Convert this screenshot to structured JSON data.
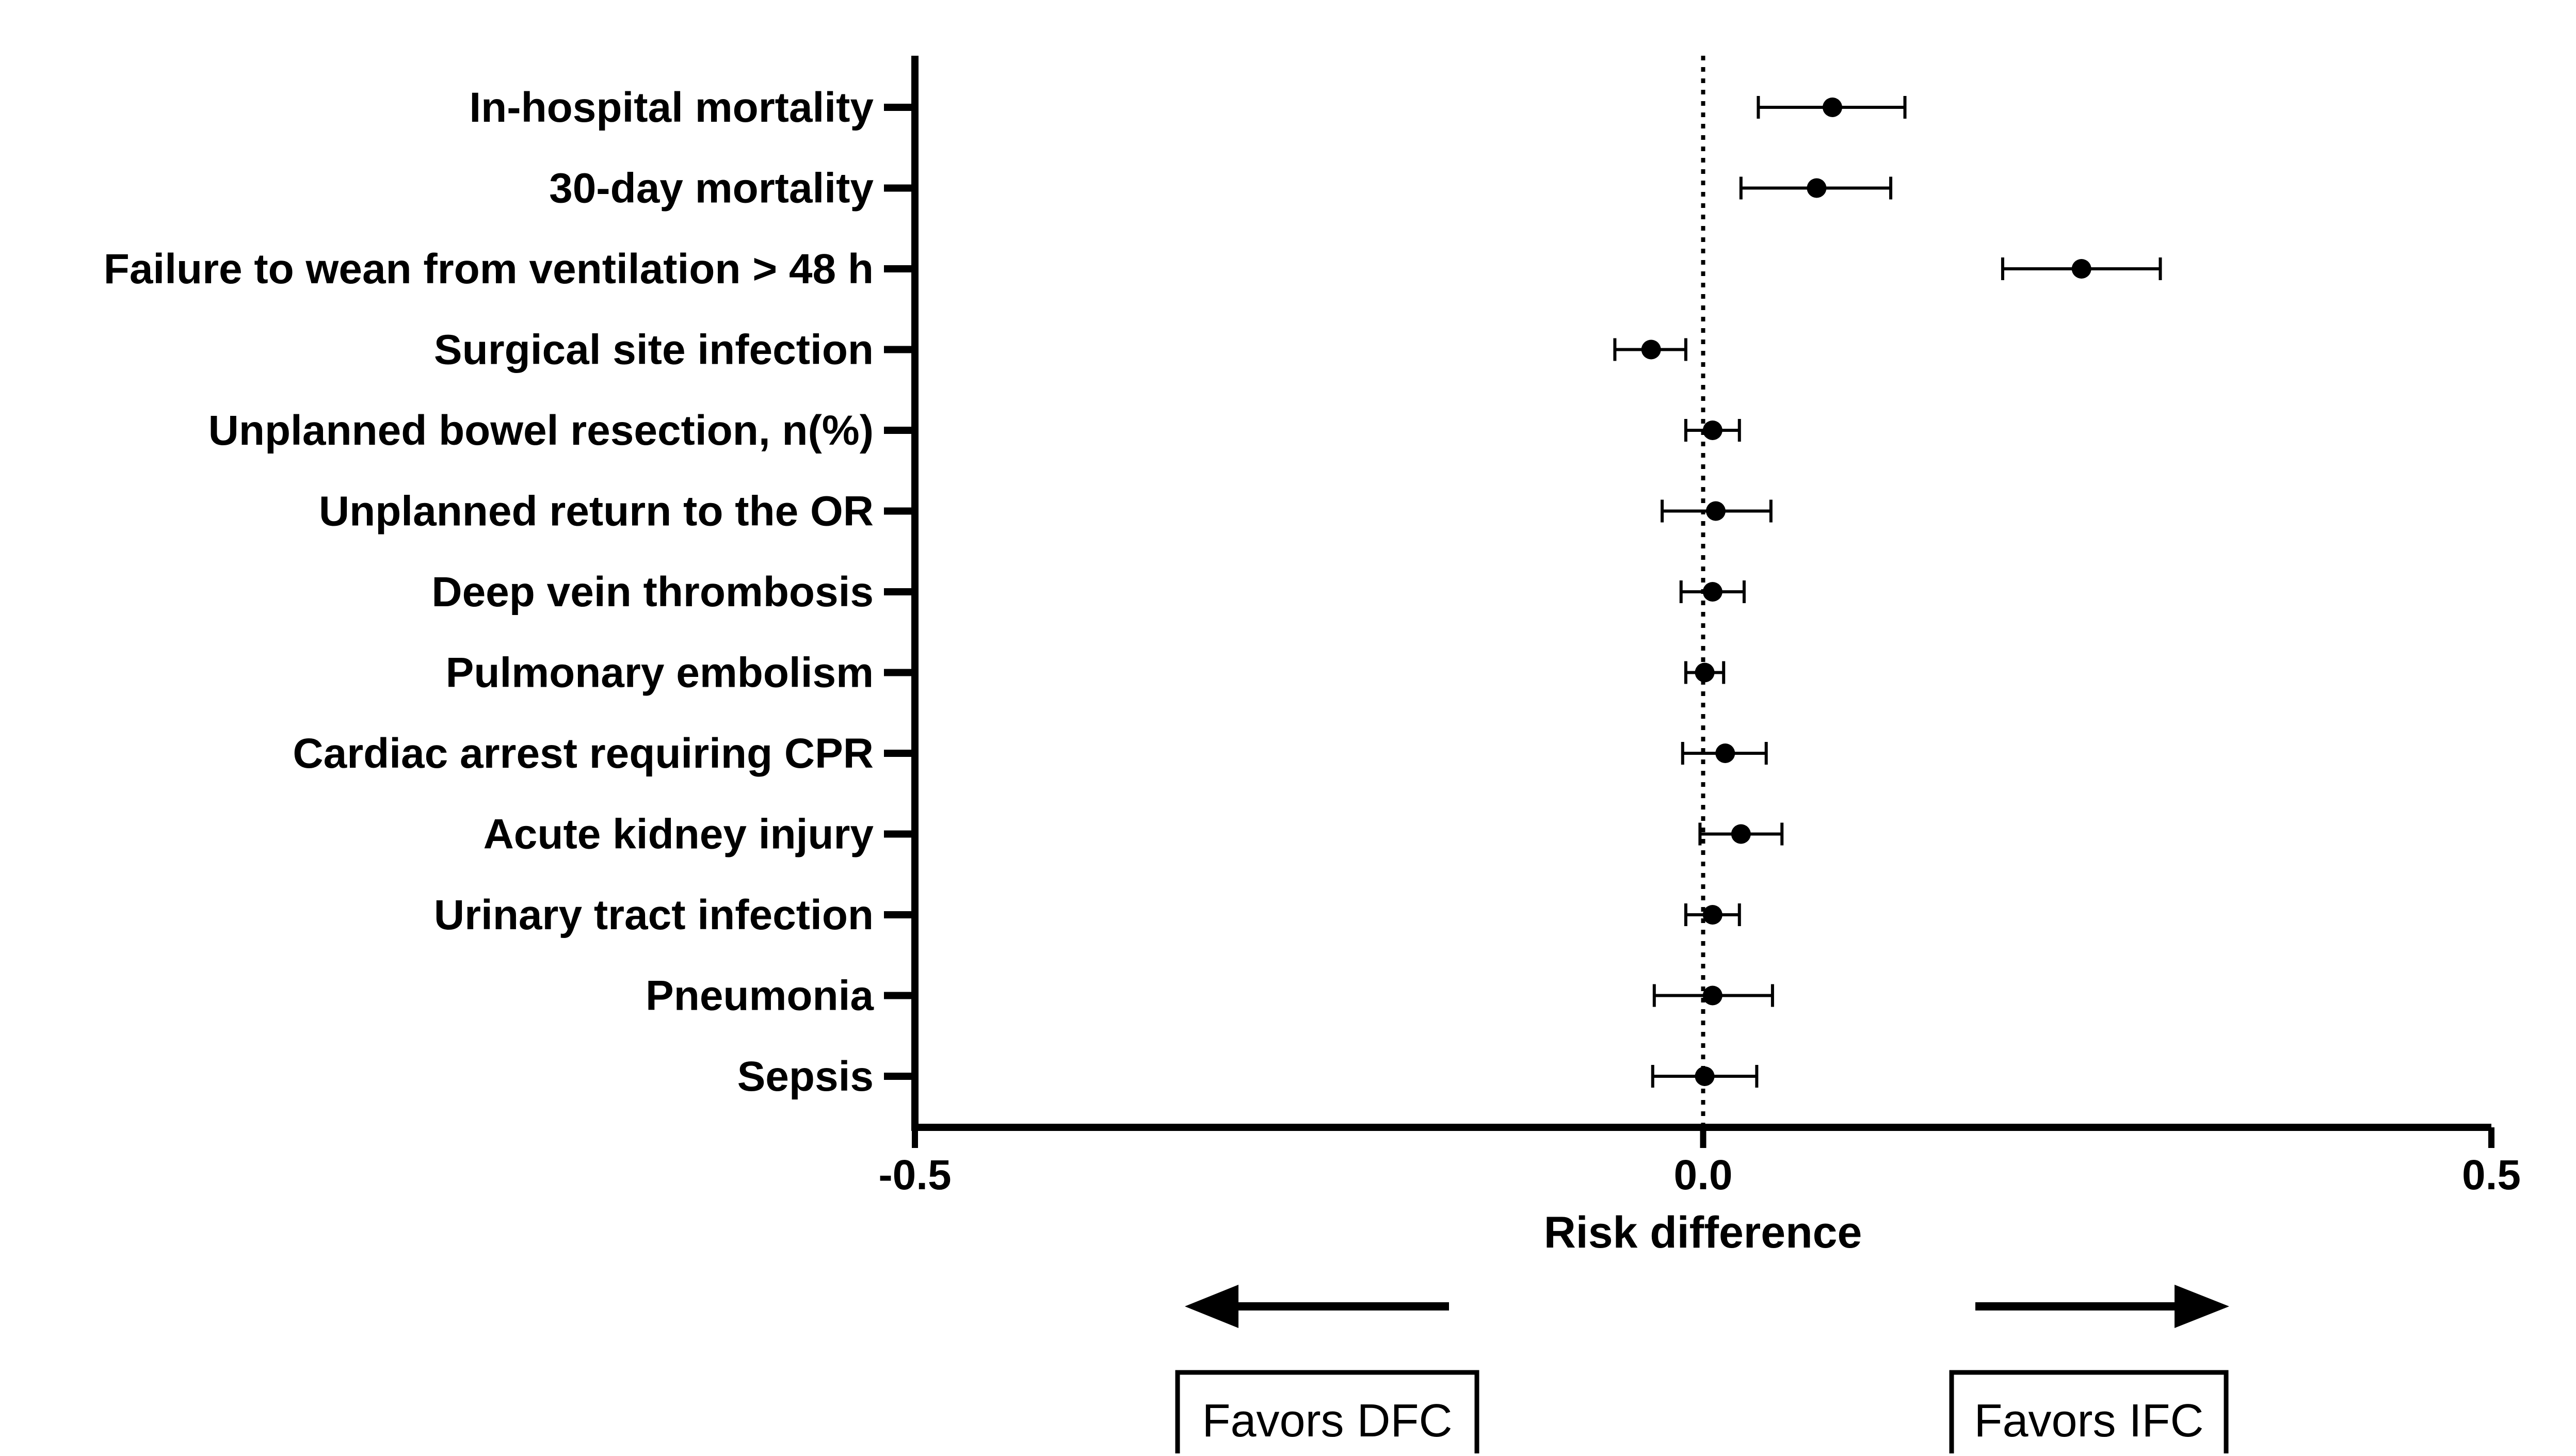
{
  "chart_data": {
    "type": "scatter",
    "subtype": "forest-plot",
    "xlabel": "Risk difference",
    "xlim": [
      -0.5,
      0.5
    ],
    "xticks": [
      {
        "value": -0.5,
        "label": "-0.5"
      },
      {
        "value": 0.0,
        "label": "0.0"
      },
      {
        "value": 0.5,
        "label": "0.5"
      }
    ],
    "reference_line": 0.0,
    "grid": false,
    "rows": [
      {
        "label": "In-hospital mortality",
        "estimate": 0.082,
        "lower": 0.035,
        "upper": 0.128
      },
      {
        "label": "30-day mortality",
        "estimate": 0.072,
        "lower": 0.024,
        "upper": 0.119
      },
      {
        "label": "Failure to wean from ventilation > 48 h",
        "estimate": 0.24,
        "lower": 0.19,
        "upper": 0.29
      },
      {
        "label": "Surgical site infection",
        "estimate": -0.033,
        "lower": -0.056,
        "upper": -0.011
      },
      {
        "label": "Unplanned bowel resection, n(%)",
        "estimate": 0.006,
        "lower": -0.011,
        "upper": 0.023
      },
      {
        "label": "Unplanned return to the OR",
        "estimate": 0.008,
        "lower": -0.026,
        "upper": 0.043
      },
      {
        "label": "Deep vein thrombosis",
        "estimate": 0.006,
        "lower": -0.014,
        "upper": 0.026
      },
      {
        "label": "Pulmonary embolism",
        "estimate": 0.001,
        "lower": -0.011,
        "upper": 0.013
      },
      {
        "label": "Cardiac arrest requiring CPR",
        "estimate": 0.014,
        "lower": -0.013,
        "upper": 0.04
      },
      {
        "label": "Acute kidney injury",
        "estimate": 0.024,
        "lower": -0.002,
        "upper": 0.05
      },
      {
        "label": "Urinary tract infection",
        "estimate": 0.006,
        "lower": -0.011,
        "upper": 0.023
      },
      {
        "label": "Pneumonia",
        "estimate": 0.006,
        "lower": -0.031,
        "upper": 0.044
      },
      {
        "label": "Sepsis",
        "estimate": 0.001,
        "lower": -0.032,
        "upper": 0.034
      }
    ]
  },
  "annotations": {
    "left": "Favors DFC",
    "right": "Favors IFC"
  }
}
